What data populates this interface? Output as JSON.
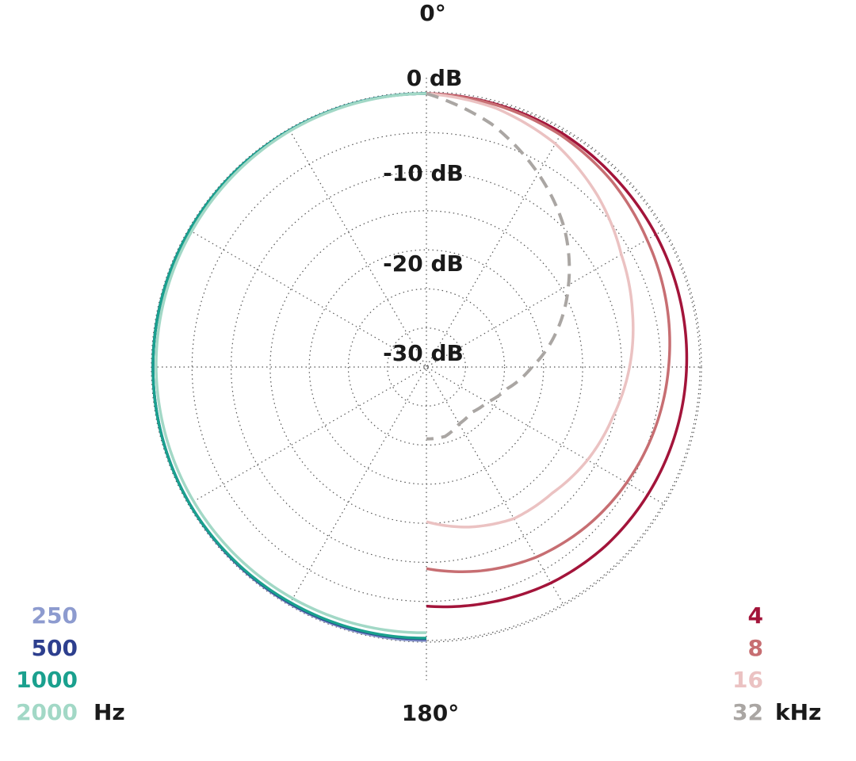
{
  "chart_data": {
    "type": "polar",
    "angle_labels": {
      "top": "0°",
      "bottom": "180°"
    },
    "radial_axis": {
      "range_db": [
        -35,
        0
      ],
      "ring_step_db": 5,
      "tick_labels": [
        {
          "value": 0,
          "label": "0 dB"
        },
        {
          "value": -10,
          "label": "-10 dB"
        },
        {
          "value": -20,
          "label": "-20 dB"
        },
        {
          "value": -30,
          "label": "-30 dB"
        }
      ]
    },
    "angle_grid_step_deg": 30,
    "grid": true,
    "legend_left": {
      "unit": "Hz",
      "entries": [
        {
          "label": "250",
          "color": "#8d9bcf"
        },
        {
          "label": "500",
          "color": "#2d3f8e"
        },
        {
          "label": "1000",
          "color": "#1aa08e"
        },
        {
          "label": "2000",
          "color": "#a2d8c6"
        }
      ]
    },
    "legend_right": {
      "unit": "kHz",
      "entries": [
        {
          "label": "4",
          "color": "#a3143a"
        },
        {
          "label": "8",
          "color": "#c76e72"
        },
        {
          "label": "16",
          "color": "#ebc2c2"
        },
        {
          "label": "32",
          "color": "#aaa6a3"
        }
      ]
    },
    "series": [
      {
        "name": "250",
        "side": "left",
        "color": "#8d9bcf",
        "dashed": false,
        "points": [
          [
            0,
            0
          ],
          [
            30,
            0
          ],
          [
            60,
            0
          ],
          [
            90,
            0
          ],
          [
            120,
            0
          ],
          [
            150,
            0
          ],
          [
            180,
            0
          ]
        ]
      },
      {
        "name": "500",
        "side": "left",
        "color": "#2d3f8e",
        "dashed": false,
        "points": [
          [
            0,
            0
          ],
          [
            30,
            0
          ],
          [
            60,
            0
          ],
          [
            90,
            0
          ],
          [
            120,
            0
          ],
          [
            150,
            -0.1
          ],
          [
            180,
            -0.2
          ]
        ]
      },
      {
        "name": "1000",
        "side": "left",
        "color": "#1aa08e",
        "dashed": false,
        "points": [
          [
            0,
            0
          ],
          [
            30,
            0
          ],
          [
            60,
            0
          ],
          [
            90,
            0
          ],
          [
            120,
            0
          ],
          [
            150,
            -0.2
          ],
          [
            180,
            -0.3
          ]
        ]
      },
      {
        "name": "2000",
        "side": "left",
        "color": "#a2d8c6",
        "dashed": false,
        "points": [
          [
            0,
            0
          ],
          [
            30,
            -0.1
          ],
          [
            60,
            -0.3
          ],
          [
            90,
            -0.4
          ],
          [
            120,
            -0.6
          ],
          [
            150,
            -0.8
          ],
          [
            180,
            -1.0
          ]
        ]
      },
      {
        "name": "4",
        "side": "right",
        "color": "#a3143a",
        "dashed": false,
        "points": [
          [
            0,
            0
          ],
          [
            15,
            -0.2
          ],
          [
            30,
            -0.4
          ],
          [
            45,
            -0.8
          ],
          [
            60,
            -1.1
          ],
          [
            75,
            -1.4
          ],
          [
            90,
            -1.7
          ],
          [
            105,
            -2.0
          ],
          [
            120,
            -2.3
          ],
          [
            135,
            -2.6
          ],
          [
            150,
            -3.1
          ],
          [
            165,
            -3.8
          ],
          [
            180,
            -4.4
          ]
        ]
      },
      {
        "name": "8",
        "side": "right",
        "color": "#c76e72",
        "dashed": false,
        "points": [
          [
            0,
            0
          ],
          [
            15,
            -0.3
          ],
          [
            30,
            -0.7
          ],
          [
            45,
            -1.4
          ],
          [
            60,
            -2.4
          ],
          [
            75,
            -3.2
          ],
          [
            90,
            -4.0
          ],
          [
            105,
            -4.7
          ],
          [
            120,
            -5.4
          ],
          [
            135,
            -6.1
          ],
          [
            150,
            -6.9
          ],
          [
            165,
            -8.0
          ],
          [
            180,
            -9.2
          ]
        ]
      },
      {
        "name": "16",
        "side": "right",
        "color": "#ebc2c2",
        "dashed": false,
        "points": [
          [
            0,
            0
          ],
          [
            15,
            -0.7
          ],
          [
            30,
            -2.0
          ],
          [
            45,
            -4.0
          ],
          [
            60,
            -6.2
          ],
          [
            75,
            -7.7
          ],
          [
            90,
            -9.0
          ],
          [
            105,
            -10.3
          ],
          [
            120,
            -11.2
          ],
          [
            135,
            -12.2
          ],
          [
            150,
            -12.6
          ],
          [
            165,
            -13.8
          ],
          [
            180,
            -15.2
          ]
        ]
      },
      {
        "name": "32",
        "side": "right",
        "color": "#aaa6a3",
        "dashed": true,
        "points": [
          [
            0,
            0
          ],
          [
            15,
            -2.8
          ],
          [
            30,
            -6.4
          ],
          [
            45,
            -10.0
          ],
          [
            60,
            -14.0
          ],
          [
            75,
            -17.8
          ],
          [
            90,
            -21.5
          ],
          [
            105,
            -24.3
          ],
          [
            120,
            -26.0
          ],
          [
            135,
            -26.8
          ],
          [
            150,
            -26.6
          ],
          [
            165,
            -25.8
          ],
          [
            180,
            -25.8
          ]
        ]
      }
    ]
  }
}
